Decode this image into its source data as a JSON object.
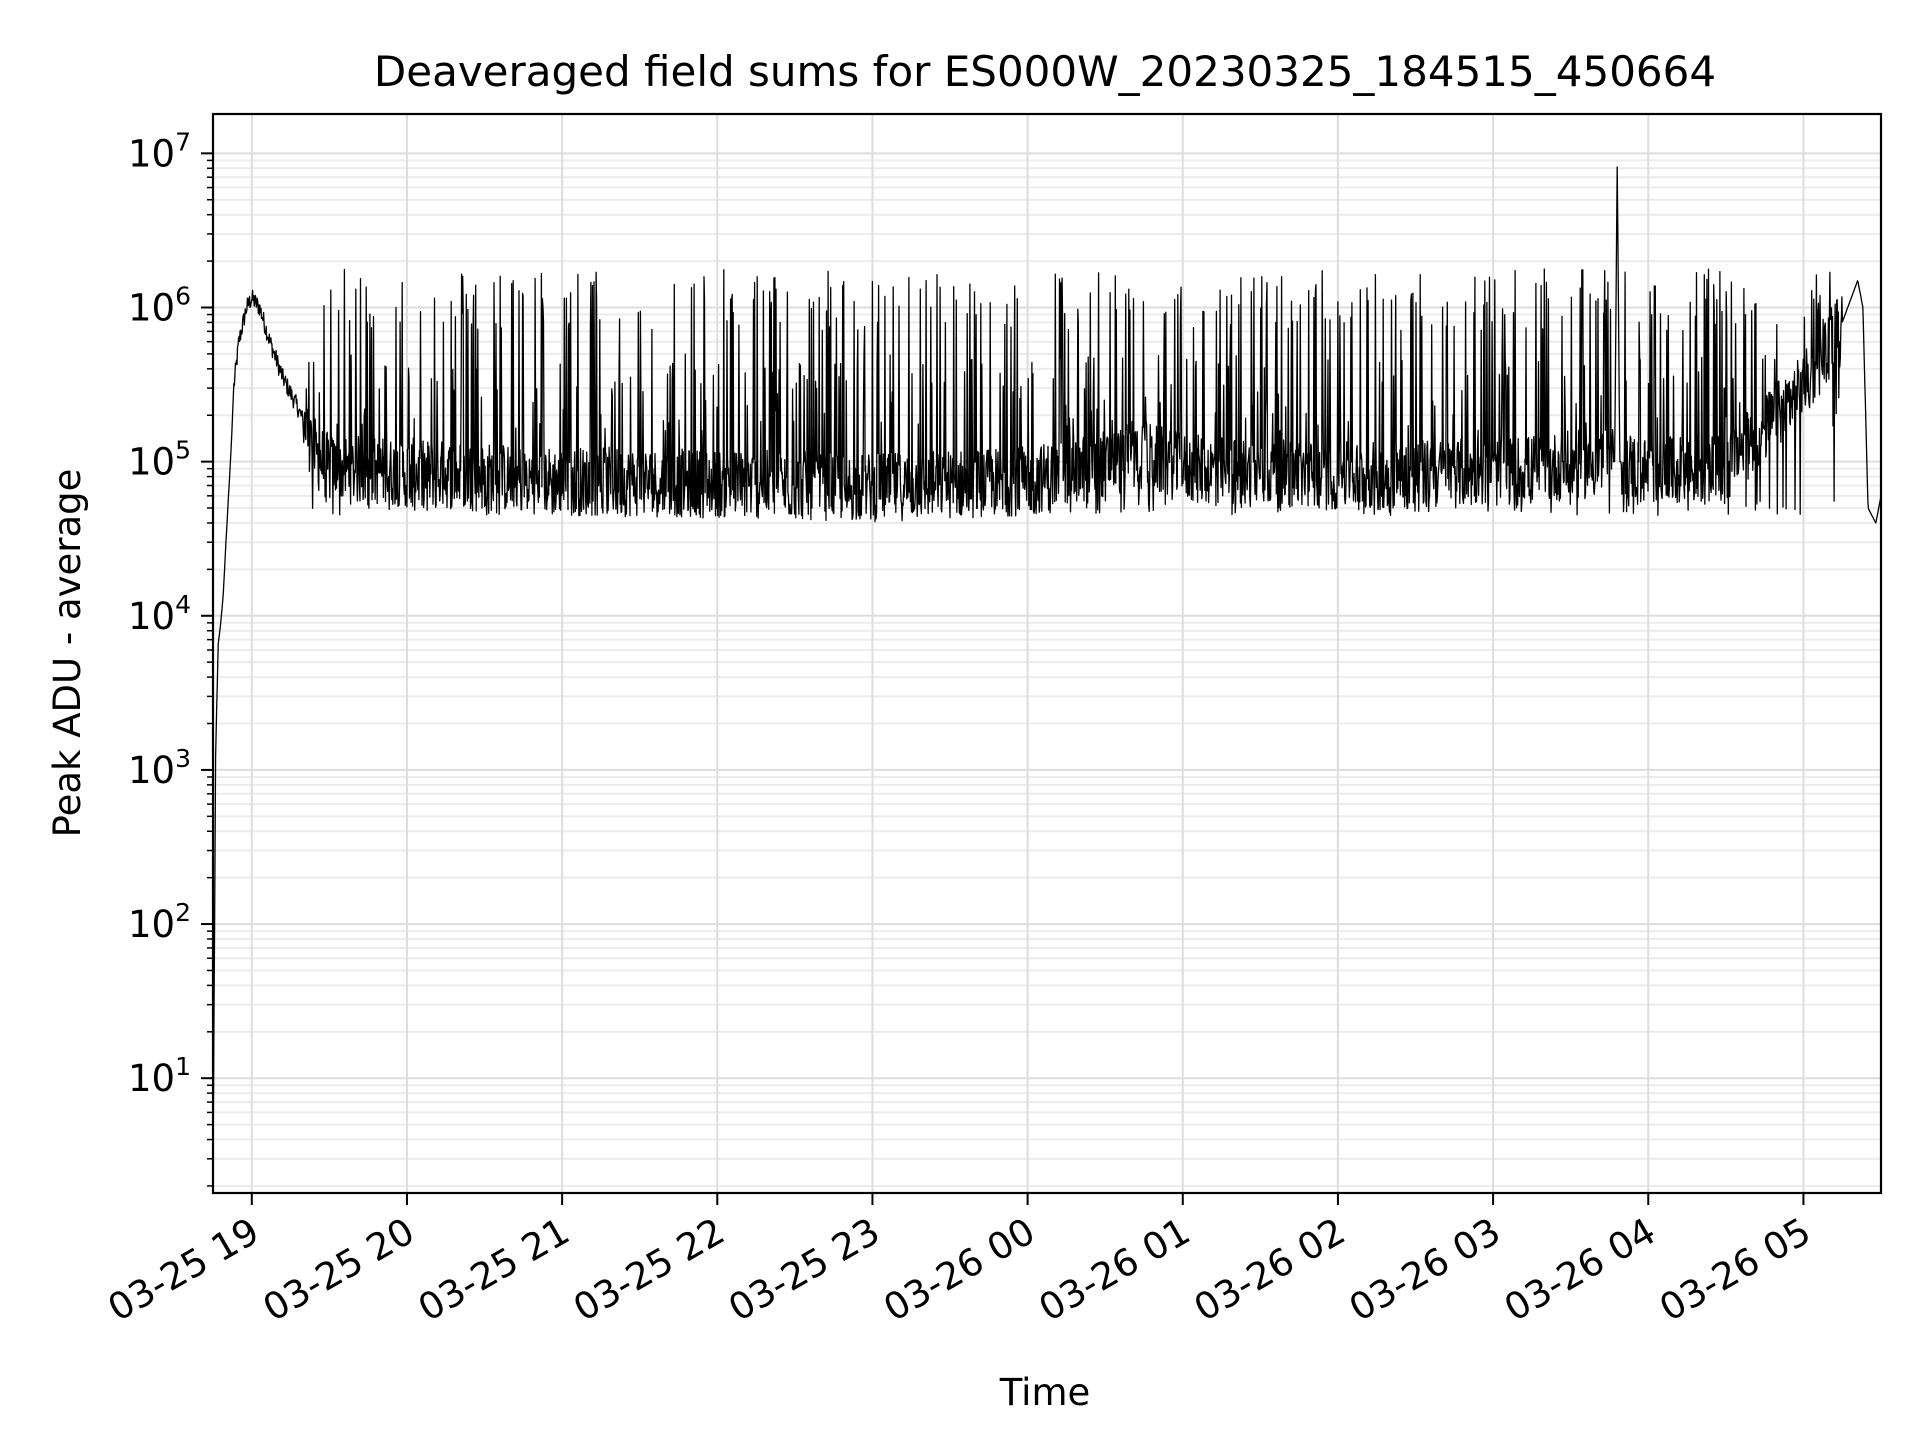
{
  "chart_data": {
    "type": "line",
    "title": "Deaveraged field sums for ES000W_20230325_184515_450664",
    "xlabel": "Time",
    "ylabel": "Peak ADU - average",
    "yscale": "log",
    "xlim": [
      "2023-03-25 18:45",
      "2023-03-26 05:30"
    ],
    "ylim": [
      1.8,
      18000000
    ],
    "grid": true,
    "line_color": "#000000",
    "x_ticks": [
      {
        "value": "2023-03-25 19:00",
        "label": "03-25 19"
      },
      {
        "value": "2023-03-25 20:00",
        "label": "03-25 20"
      },
      {
        "value": "2023-03-25 21:00",
        "label": "03-25 21"
      },
      {
        "value": "2023-03-25 22:00",
        "label": "03-25 22"
      },
      {
        "value": "2023-03-25 23:00",
        "label": "03-25 23"
      },
      {
        "value": "2023-03-26 00:00",
        "label": "03-26 00"
      },
      {
        "value": "2023-03-26 01:00",
        "label": "03-26 01"
      },
      {
        "value": "2023-03-26 02:00",
        "label": "03-26 02"
      },
      {
        "value": "2023-03-26 03:00",
        "label": "03-26 03"
      },
      {
        "value": "2023-03-26 04:00",
        "label": "03-26 04"
      },
      {
        "value": "2023-03-26 05:00",
        "label": "03-26 05"
      }
    ],
    "y_ticks": [
      {
        "value": 10,
        "base": "10",
        "exp": "1"
      },
      {
        "value": 100,
        "base": "10",
        "exp": "2"
      },
      {
        "value": 1000,
        "base": "10",
        "exp": "3"
      },
      {
        "value": 10000,
        "base": "10",
        "exp": "4"
      },
      {
        "value": 100000,
        "base": "10",
        "exp": "5"
      },
      {
        "value": 1000000,
        "base": "10",
        "exp": "6"
      },
      {
        "value": 10000000,
        "base": "10",
        "exp": "7"
      }
    ],
    "series": [
      {
        "points": [
          [
            "2023-03-25 18:45",
            2
          ],
          [
            "2023-03-25 18:46",
            1200
          ],
          [
            "2023-03-25 18:47",
            6500
          ],
          [
            "2023-03-25 18:48",
            9000
          ],
          [
            "2023-03-25 18:49",
            14000
          ],
          [
            "2023-03-25 18:50",
            30000
          ],
          [
            "2023-03-25 18:51",
            60000
          ],
          [
            "2023-03-25 18:52",
            120000
          ],
          [
            "2023-03-25 18:53",
            300000
          ],
          [
            "2023-03-25 18:55",
            600000
          ],
          [
            "2023-03-25 18:58",
            1000000
          ],
          [
            "2023-03-25 19:00",
            1150000
          ],
          [
            "2023-03-25 19:03",
            1000000
          ],
          [
            "2023-03-25 19:07",
            600000
          ],
          [
            "2023-03-25 19:12",
            350000
          ],
          [
            "2023-03-25 19:18",
            220000
          ],
          [
            "2023-03-25 19:25",
            110000
          ],
          [
            "2023-03-25 19:30",
            90000
          ],
          [
            "2023-03-25 20:00",
            85000
          ],
          [
            "2023-03-25 21:00",
            75000
          ],
          [
            "2023-03-25 22:00",
            72000
          ],
          [
            "2023-03-25 23:00",
            68000
          ],
          [
            "2023-03-26 00:00",
            75000
          ],
          [
            "2023-03-26 00:45",
            110000
          ],
          [
            "2023-03-26 01:00",
            90000
          ],
          [
            "2023-03-26 02:00",
            80000
          ],
          [
            "2023-03-26 03:00",
            85000
          ],
          [
            "2023-03-26 03:47",
            100000
          ],
          [
            "2023-03-26 03:48",
            8500000
          ],
          [
            "2023-03-26 03:49",
            100000
          ],
          [
            "2023-03-26 04:00",
            85000
          ],
          [
            "2023-03-26 04:30",
            90000
          ],
          [
            "2023-03-26 05:00",
            300000
          ],
          [
            "2023-03-26 05:15",
            800000
          ],
          [
            "2023-03-26 05:21",
            1500000
          ],
          [
            "2023-03-26 05:23",
            1000000
          ],
          [
            "2023-03-26 05:25",
            50000
          ],
          [
            "2023-03-26 05:28",
            40000
          ],
          [
            "2023-03-26 05:30",
            60000
          ]
        ]
      }
    ]
  }
}
